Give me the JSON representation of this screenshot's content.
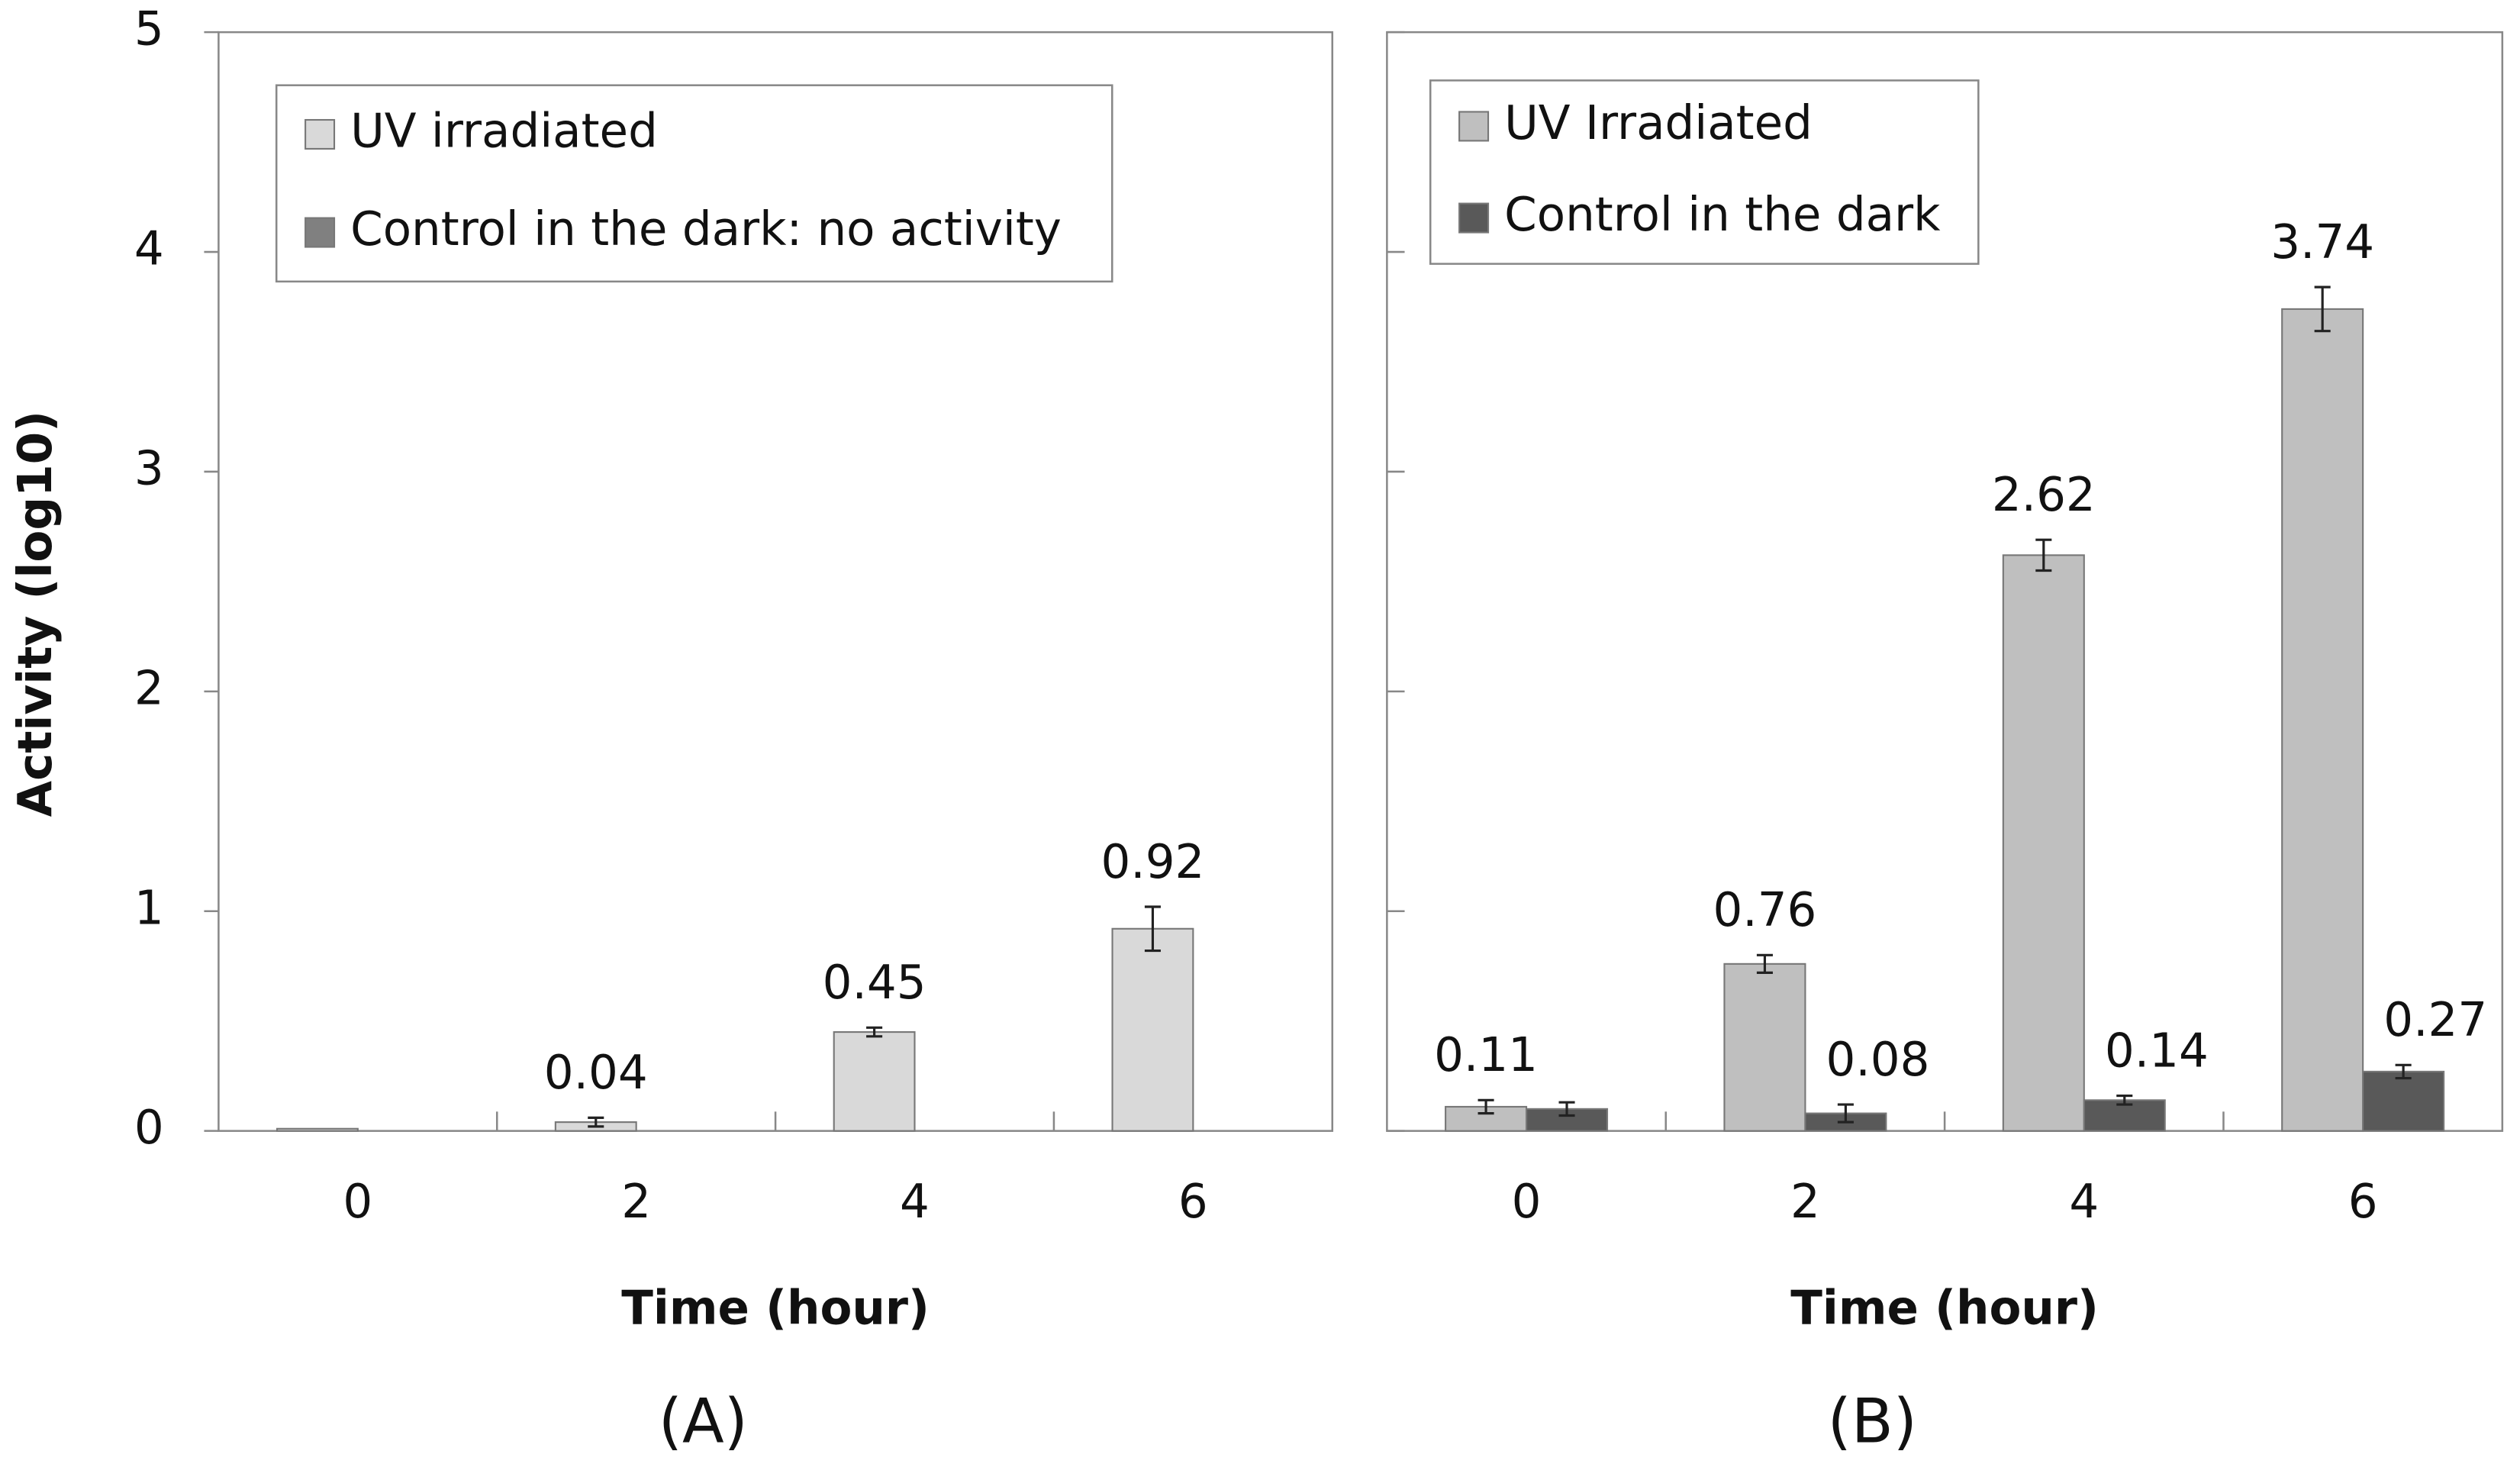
{
  "chart_data": [
    {
      "type": "bar",
      "panel_label": "(A)",
      "x_label": "Time (hour)",
      "y_label": "Activity (log10)",
      "categories": [
        "0",
        "2",
        "4",
        "6"
      ],
      "series": [
        {
          "name": "UV irradiated",
          "color": "#d9d9d9",
          "values": [
            0.01,
            0.04,
            0.45,
            0.92
          ],
          "errors": [
            null,
            0.02,
            0.02,
            0.1
          ],
          "value_labels": [
            null,
            "0.04",
            "0.45",
            "0.92"
          ]
        },
        {
          "name": "Control in the dark: no activity",
          "color": "#808080",
          "values": [
            null,
            null,
            null,
            null
          ]
        }
      ],
      "ylim": [
        0,
        5
      ],
      "yticks": [
        0,
        1,
        2,
        3,
        4,
        5
      ],
      "ytick_labels": true
    },
    {
      "type": "bar",
      "panel_label": "(B)",
      "x_label": "Time (hour)",
      "categories": [
        "0",
        "2",
        "4",
        "6"
      ],
      "series": [
        {
          "name": "UV Irradiated",
          "color": "#bfbfbf",
          "values": [
            0.11,
            0.76,
            2.62,
            3.74
          ],
          "errors": [
            0.03,
            0.04,
            0.07,
            0.1
          ]
        },
        {
          "name": "Control in the dark",
          "color": "#595959",
          "values": [
            0.1,
            0.08,
            0.14,
            0.27
          ],
          "errors": [
            0.03,
            0.04,
            0.02,
            0.03
          ],
          "value_labels": [
            null,
            "0.08",
            "0.14",
            "0.27"
          ]
        }
      ],
      "ylim": [
        0,
        5
      ],
      "yticks": [
        0,
        1,
        2,
        3,
        4,
        5
      ],
      "ytick_labels": false
    }
  ]
}
